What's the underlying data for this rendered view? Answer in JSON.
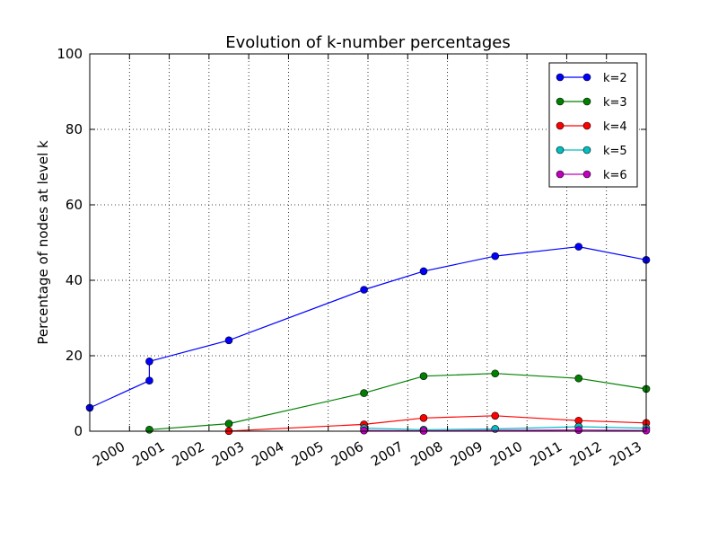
{
  "chart_data": {
    "type": "line",
    "title": "Evolution of k-number percentages",
    "xlabel": "",
    "ylabel": "Percentage of nodes at level k",
    "xlim": [
      1999.0,
      2013.0
    ],
    "ylim": [
      0,
      100
    ],
    "yticks": [
      0,
      20,
      40,
      60,
      80,
      100
    ],
    "xticks": [
      {
        "label": "2000",
        "v": 2000.0
      },
      {
        "label": "2001",
        "v": 2001.0
      },
      {
        "label": "2002",
        "v": 2002.0
      },
      {
        "label": "2003",
        "v": 2003.0
      },
      {
        "label": "2004",
        "v": 2004.0
      },
      {
        "label": "2005",
        "v": 2005.0
      },
      {
        "label": "2006",
        "v": 2006.0
      },
      {
        "label": "2007",
        "v": 2007.0
      },
      {
        "label": "2008",
        "v": 2008.0
      },
      {
        "label": "2009",
        "v": 2009.0
      },
      {
        "label": "2010",
        "v": 2010.0
      },
      {
        "label": "2011",
        "v": 2011.0
      },
      {
        "label": "2012",
        "v": 2012.0
      },
      {
        "label": "2013",
        "v": 2013.0
      }
    ],
    "grid": true,
    "legend_position": "top-right",
    "series": [
      {
        "name": "k=2",
        "color": "#0000ff",
        "x": [
          1999.0,
          2000.5,
          2000.5,
          2002.5,
          2005.9,
          2007.4,
          2009.2,
          2011.3,
          2013.0
        ],
        "y": [
          6.2,
          13.4,
          18.5,
          24.1,
          37.5,
          42.4,
          46.4,
          48.9,
          45.4
        ]
      },
      {
        "name": "k=3",
        "color": "#008000",
        "x": [
          2000.5,
          2002.5,
          2005.9,
          2007.4,
          2009.2,
          2011.3,
          2013.0
        ],
        "y": [
          0.4,
          2.0,
          10.1,
          14.6,
          15.3,
          14.0,
          11.2
        ]
      },
      {
        "name": "k=4",
        "color": "#ff0000",
        "x": [
          2002.5,
          2005.9,
          2007.4,
          2009.2,
          2011.3,
          2013.0
        ],
        "y": [
          0.05,
          1.8,
          3.5,
          4.1,
          2.8,
          2.2
        ]
      },
      {
        "name": "k=5",
        "color": "#00bfbf",
        "x": [
          2005.9,
          2007.4,
          2009.2,
          2011.3,
          2013.0
        ],
        "y": [
          0.8,
          0.4,
          0.6,
          1.2,
          0.8
        ]
      },
      {
        "name": "k=6",
        "color": "#bf00bf",
        "x": [
          2005.9,
          2007.4,
          2011.3,
          2013.0
        ],
        "y": [
          0.2,
          0.1,
          0.3,
          0.2
        ]
      }
    ]
  }
}
